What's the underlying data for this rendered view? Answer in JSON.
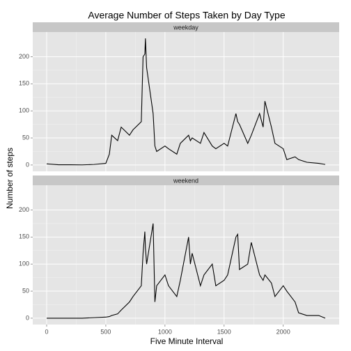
{
  "chart_data": {
    "type": "line",
    "title": "Average Number of Steps Taken by Day Type",
    "xlabel": "Five Minute Interval",
    "ylabel": "Number of steps",
    "x": [
      0,
      100,
      200,
      300,
      400,
      500,
      530,
      550,
      600,
      630,
      700,
      730,
      800,
      815,
      830,
      835,
      845,
      900,
      915,
      930,
      1000,
      1030,
      1100,
      1130,
      1200,
      1215,
      1230,
      1300,
      1330,
      1400,
      1430,
      1500,
      1530,
      1600,
      1615,
      1630,
      1700,
      1730,
      1800,
      1830,
      1845,
      1900,
      1930,
      2000,
      2030,
      2100,
      2130,
      2200,
      2300,
      2355
    ],
    "series": [
      {
        "name": "weekday",
        "color": "#000000",
        "values": [
          2,
          0.5,
          0.5,
          0.2,
          1,
          3,
          20,
          55,
          45,
          70,
          55,
          65,
          80,
          200,
          205,
          234,
          180,
          95,
          35,
          25,
          35,
          30,
          20,
          40,
          55,
          45,
          50,
          40,
          60,
          35,
          30,
          40,
          35,
          95,
          80,
          75,
          40,
          55,
          95,
          70,
          118,
          70,
          40,
          30,
          10,
          15,
          10,
          5,
          3,
          1
        ]
      },
      {
        "name": "weekend",
        "color": "#000000",
        "values": [
          0,
          0,
          0,
          0,
          1,
          2,
          3,
          5,
          8,
          15,
          30,
          40,
          60,
          120,
          160,
          130,
          100,
          175,
          30,
          60,
          80,
          60,
          40,
          70,
          150,
          100,
          120,
          60,
          80,
          100,
          60,
          70,
          80,
          150,
          155,
          90,
          100,
          140,
          80,
          70,
          80,
          65,
          40,
          60,
          50,
          30,
          10,
          5,
          5,
          0
        ]
      }
    ],
    "xlim": [
      -117.75,
      2472.75
    ],
    "xticks": [
      0,
      500,
      1000,
      1500,
      2000
    ],
    "ylim": [
      -11.7,
      245.7
    ],
    "yticks": [
      0,
      50,
      100,
      150,
      200
    ],
    "grid": true
  }
}
